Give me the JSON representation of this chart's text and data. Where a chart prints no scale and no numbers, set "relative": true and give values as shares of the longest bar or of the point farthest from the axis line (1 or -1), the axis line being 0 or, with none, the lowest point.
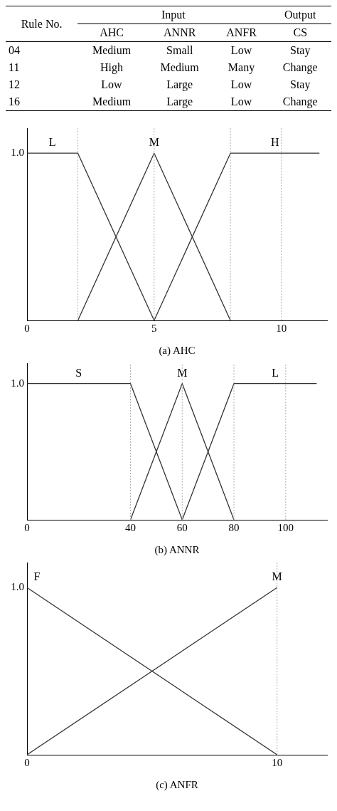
{
  "chart_data": [
    {
      "type": "other",
      "annotations": [
        "Rule No.",
        "Input",
        "Output"
      ],
      "categories": [
        "AHC",
        "ANNR",
        "ANFR",
        "CS"
      ],
      "y_categories": [
        "04",
        "11",
        "12",
        "16"
      ],
      "cell_labels": [
        [
          "Medium",
          "Small",
          "Low",
          "Stay"
        ],
        [
          "High",
          "Medium",
          "Many",
          "Change"
        ],
        [
          "Low",
          "Large",
          "Low",
          "Stay"
        ],
        [
          "Medium",
          "Large",
          "Low",
          "Change"
        ]
      ]
    },
    {
      "type": "line",
      "xlabel": "(a) AHC",
      "xlim": [
        0,
        11.8
      ],
      "xticks": [
        0,
        5,
        10
      ],
      "relative": true,
      "annotations": [
        "1.0"
      ],
      "grid": false,
      "legend": false,
      "marker": "none",
      "ref_lines": [
        {
          "axis": "x",
          "value": 2,
          "color": "#b0b0b0",
          "line_style": "dotted"
        },
        {
          "axis": "x",
          "value": 5,
          "color": "#b0b0b0",
          "line_style": "dotted"
        },
        {
          "axis": "x",
          "value": 8,
          "color": "#b0b0b0",
          "line_style": "dotted"
        },
        {
          "axis": "x",
          "value": 10,
          "color": "#b0b0b0",
          "line_style": "dotted"
        }
      ],
      "series": [
        {
          "name": "L",
          "color": "#333333",
          "x": [
            0,
            2,
            5
          ],
          "values": [
            1,
            1,
            0
          ]
        },
        {
          "name": "M",
          "color": "#333333",
          "x": [
            2,
            5,
            8
          ],
          "values": [
            0,
            1,
            0
          ]
        },
        {
          "name": "H",
          "color": "#333333",
          "x": [
            5,
            8,
            11.5
          ],
          "values": [
            0,
            1,
            1
          ]
        }
      ]
    },
    {
      "type": "line",
      "xlabel": "(b) ANNR",
      "xlim": [
        0,
        116
      ],
      "xticks": [
        0,
        40,
        60,
        80,
        100
      ],
      "relative": true,
      "annotations": [
        "1.0"
      ],
      "grid": false,
      "legend": false,
      "marker": "none",
      "ref_lines": [
        {
          "axis": "x",
          "value": 40,
          "color": "#b0b0b0",
          "line_style": "dotted"
        },
        {
          "axis": "x",
          "value": 60,
          "color": "#b0b0b0",
          "line_style": "dotted"
        },
        {
          "axis": "x",
          "value": 80,
          "color": "#b0b0b0",
          "line_style": "dotted"
        },
        {
          "axis": "x",
          "value": 100,
          "color": "#b0b0b0",
          "line_style": "dotted"
        }
      ],
      "series": [
        {
          "name": "S",
          "color": "#333333",
          "x": [
            0,
            40,
            60
          ],
          "values": [
            1,
            1,
            0
          ]
        },
        {
          "name": "M",
          "color": "#333333",
          "x": [
            40,
            60,
            80
          ],
          "values": [
            0,
            1,
            0
          ]
        },
        {
          "name": "L",
          "color": "#333333",
          "x": [
            60,
            80,
            112
          ],
          "values": [
            0,
            1,
            1
          ]
        }
      ]
    },
    {
      "type": "line",
      "xlabel": "(c) ANFR",
      "xlim": [
        0,
        12
      ],
      "xticks": [
        0,
        10
      ],
      "relative": true,
      "annotations": [
        "1.0"
      ],
      "grid": false,
      "legend": false,
      "marker": "none",
      "ref_lines": [
        {
          "axis": "x",
          "value": 10,
          "color": "#b0b0b0",
          "line_style": "dotted"
        }
      ],
      "series": [
        {
          "name": "F",
          "color": "#333333",
          "x": [
            0,
            10
          ],
          "values": [
            1,
            0
          ]
        },
        {
          "name": "M",
          "color": "#333333",
          "x": [
            0,
            10
          ],
          "values": [
            0,
            1
          ]
        }
      ]
    }
  ]
}
